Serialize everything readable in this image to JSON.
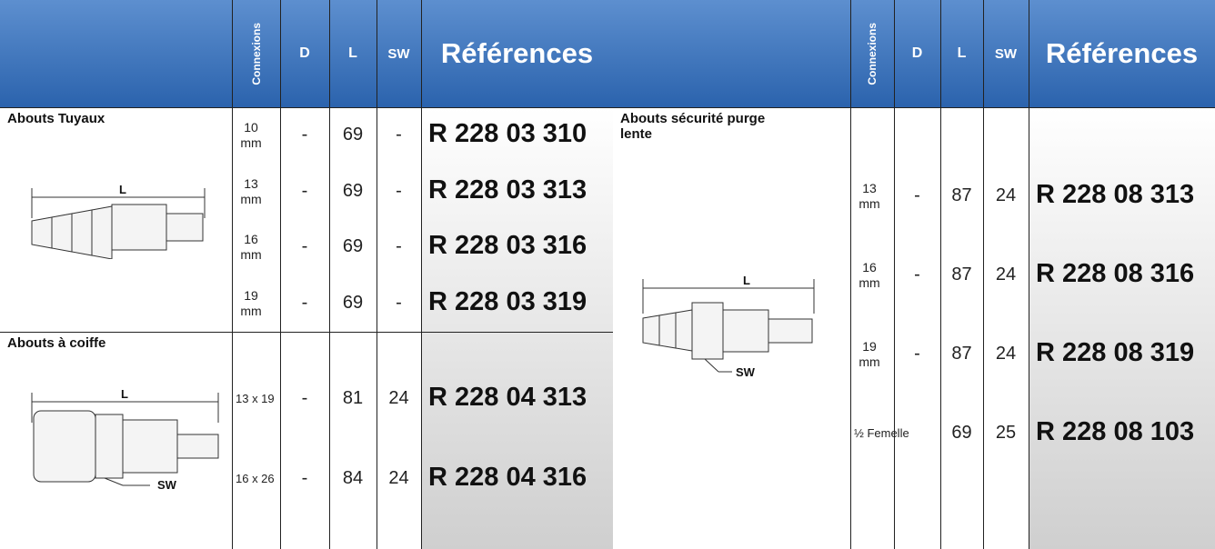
{
  "header": {
    "columns": [
      "Connexions",
      "D",
      "L",
      "SW",
      "Références"
    ]
  },
  "left": {
    "sections": [
      {
        "title": "Abouts Tuyaux",
        "diagram_labels": [
          "L"
        ],
        "rows": [
          [
            "10 mm",
            "-",
            69,
            "-",
            "R 228 03 310"
          ],
          [
            "13 mm",
            "-",
            69,
            "-",
            "R 228 03 313"
          ],
          [
            "16 mm",
            "-",
            69,
            "-",
            "R 228 03 316"
          ],
          [
            "19 mm",
            "-",
            69,
            "-",
            "R 228 03 319"
          ]
        ]
      },
      {
        "title": "Abouts à coiffe",
        "diagram_labels": [
          "L",
          "SW"
        ],
        "rows": [
          [
            "13 x 19",
            "-",
            81,
            24,
            "R 228 04 313"
          ],
          [
            "16 x 26",
            "-",
            84,
            24,
            "R 228 04 316"
          ]
        ]
      }
    ]
  },
  "right": {
    "sections": [
      {
        "title": "Abouts sécurité purge lente",
        "diagram_labels": [
          "L",
          "SW"
        ],
        "rows": [
          [
            "13 mm",
            "-",
            87,
            24,
            "R 228 08 313"
          ],
          [
            "16 mm",
            "-",
            87,
            24,
            "R 228 08 316"
          ],
          [
            "19 mm",
            "-",
            87,
            24,
            "R 228 08 319"
          ],
          [
            "½ Femelle",
            "",
            69,
            25,
            "R 228 08 103"
          ]
        ]
      }
    ]
  }
}
